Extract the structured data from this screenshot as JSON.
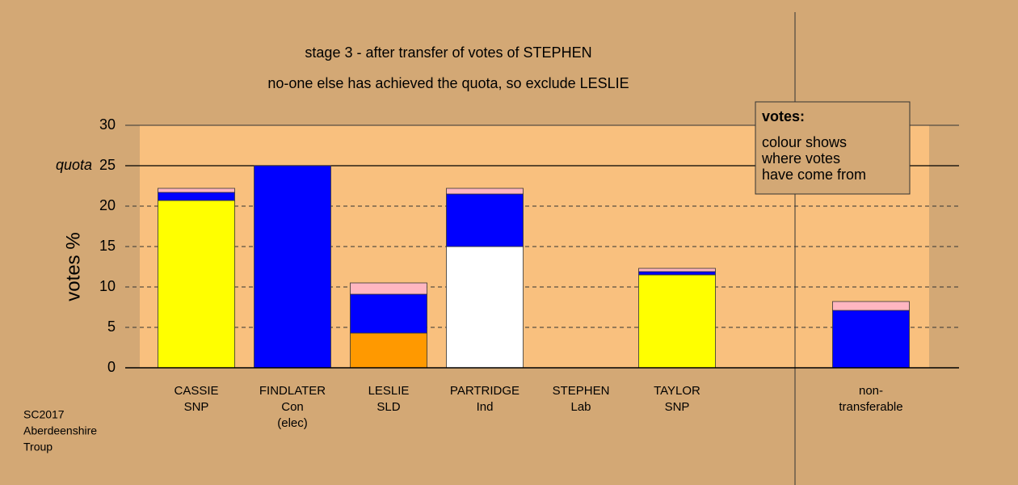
{
  "chart_data": {
    "type": "stacked-bar",
    "title": "stage 3 - after transfer of votes of STEPHEN",
    "subtitle": "no-one else has achieved the quota, so exclude LESLIE",
    "ylabel": "votes %",
    "categories": [
      [
        "CASSIE",
        "SNP"
      ],
      [
        "FINDLATER",
        "Con",
        "(elec)"
      ],
      [
        "LESLIE",
        "SLD"
      ],
      [
        "PARTRIDGE",
        "Ind"
      ],
      [
        "STEPHEN",
        "Lab"
      ],
      [
        "TAYLOR",
        "SNP"
      ],
      [
        "non-",
        "transferable"
      ]
    ],
    "series": [
      {
        "color": "#ffff00",
        "values": [
          20.7,
          0,
          0,
          0,
          0,
          11.5,
          0
        ]
      },
      {
        "color": "#ff9900",
        "values": [
          0,
          0,
          4.3,
          0,
          0,
          0,
          0
        ]
      },
      {
        "color": "#ffffff",
        "values": [
          0,
          0,
          0,
          15,
          0,
          0,
          0
        ]
      },
      {
        "color": "#0000ff",
        "values": [
          1.0,
          25,
          4.8,
          6.5,
          0,
          0.4,
          7.1
        ]
      },
      {
        "color": "#ffb6c1",
        "values": [
          0.5,
          0,
          1.4,
          0.7,
          0,
          0.4,
          1.1
        ]
      }
    ],
    "ylim": [
      0,
      30
    ],
    "yticks": [
      0,
      5,
      10,
      15,
      20,
      25,
      30
    ],
    "grid": true,
    "quota": {
      "value": 25,
      "label": "quota"
    },
    "legend_title": "votes:",
    "legend_text": [
      "colour shows",
      "where votes",
      "have come from"
    ],
    "source": [
      "SC2017",
      "Aberdeenshire",
      "Troup"
    ]
  }
}
